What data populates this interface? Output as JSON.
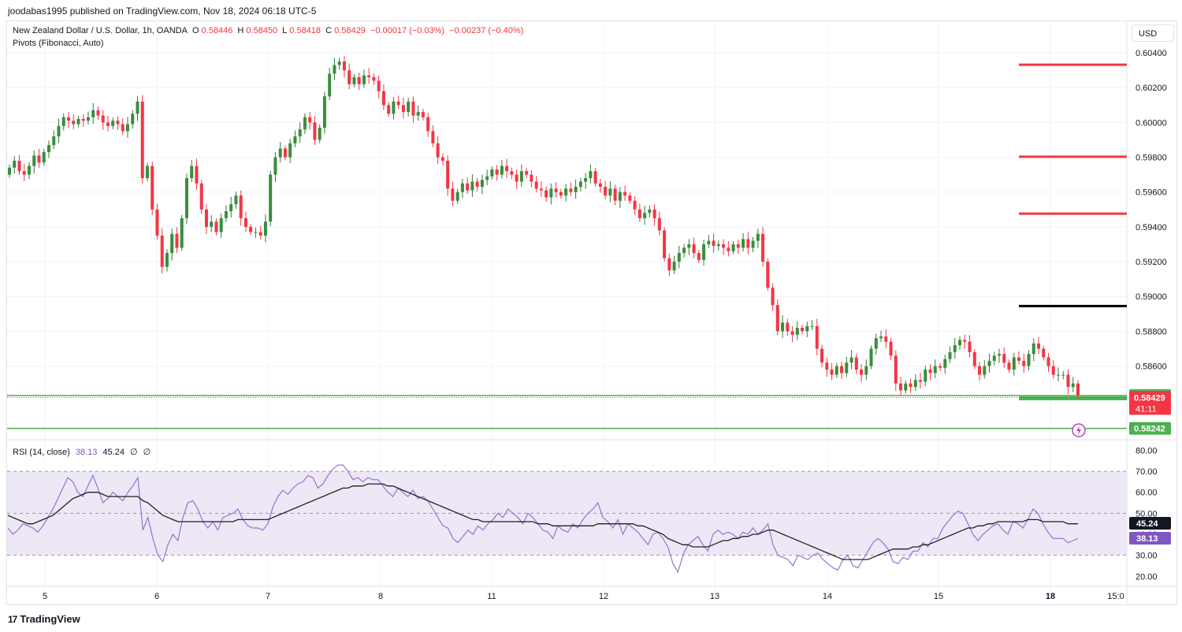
{
  "header": {
    "publisher_line": "joodabas1995 published on TradingView.com, Nov 18, 2024 06:18 UTC-5"
  },
  "legend": {
    "symbol": "New Zealand Dollar / U.S. Dollar, 1h, OANDA",
    "o_label": "O",
    "o_value": "0.58446",
    "h_label": "H",
    "h_value": "0.58450",
    "l_label": "L",
    "l_value": "0.58418",
    "c_label": "C",
    "c_value": "0.58429",
    "change": "−0.00017 (−0.03%)",
    "change2": "−0.00237 (−0.40%)",
    "indicator": "Pivots (Fibonacci, Auto)"
  },
  "currency_button": "USD",
  "rsi_legend": {
    "title": "RSI (14, close)",
    "rsi_value": "38.13",
    "ma_value": "45.24",
    "extra1": "∅",
    "extra2": "∅"
  },
  "footer": {
    "brand": "TradingView"
  },
  "colors": {
    "up": "#089981",
    "up_body": "#2e7d32",
    "down": "#f23645",
    "pivot_red": "#f23645",
    "pivot_black": "#000000",
    "support_green": "#4caf50",
    "rsi_line": "#9575cd",
    "rsi_ma": "#212121",
    "rsi_band": "#ede7f6"
  },
  "chart_data": [
    {
      "type": "candlestick",
      "title": "New Zealand Dollar / U.S. Dollar, 1h, OANDA",
      "x_tick_labels": [
        "5",
        "6",
        "7",
        "8",
        "11",
        "12",
        "13",
        "14",
        "15",
        "18",
        "15:0"
      ],
      "y_tick_labels": [
        "0.60400",
        "0.60200",
        "0.60000",
        "0.59800",
        "0.59600",
        "0.59400",
        "0.59200",
        "0.59000",
        "0.58800",
        "0.58600"
      ],
      "ylim": [
        0.58195,
        0.60475
      ],
      "last_price": "0.58429",
      "last_price_countdown": "41:11",
      "price_labels": [
        {
          "value": "0.58431",
          "color": "#4caf50"
        },
        {
          "value": "0.58242",
          "color": "#4caf50"
        }
      ],
      "pivot_levels": [
        {
          "value": 0.60332,
          "color": "#f23645"
        },
        {
          "value": 0.59803,
          "color": "#f23645"
        },
        {
          "value": 0.59476,
          "color": "#f23645"
        },
        {
          "value": 0.58945,
          "color": "#000000"
        },
        {
          "value": 0.58415,
          "color": "#4caf50"
        }
      ],
      "support_lines": [
        0.58431,
        0.58242
      ],
      "close_path": [
        0.5974,
        0.5978,
        0.5972,
        0.597,
        0.5975,
        0.5981,
        0.5977,
        0.5983,
        0.5987,
        0.5992,
        0.5998,
        0.6003,
        0.6001,
        0.5999,
        0.6002,
        0.6001,
        0.6003,
        0.6007,
        0.6004,
        0.6,
        0.5998,
        0.6001,
        0.5999,
        0.5995,
        0.5999,
        0.6005,
        0.6012,
        0.5968,
        0.5975,
        0.595,
        0.5935,
        0.5917,
        0.5925,
        0.5936,
        0.5928,
        0.5945,
        0.5968,
        0.5975,
        0.5965,
        0.595,
        0.594,
        0.5943,
        0.5937,
        0.5945,
        0.5949,
        0.5953,
        0.5958,
        0.5945,
        0.594,
        0.5937,
        0.5937,
        0.5935,
        0.5943,
        0.597,
        0.598,
        0.5985,
        0.598,
        0.5988,
        0.5992,
        0.5996,
        0.6003,
        0.6,
        0.599,
        0.5997,
        0.6015,
        0.6028,
        0.6033,
        0.6035,
        0.603,
        0.6022,
        0.6026,
        0.6022,
        0.6027,
        0.6026,
        0.6024,
        0.6018,
        0.601,
        0.6005,
        0.6012,
        0.601,
        0.6006,
        0.6012,
        0.6004,
        0.6006,
        0.6003,
        0.5995,
        0.5988,
        0.598,
        0.5978,
        0.5962,
        0.5955,
        0.596,
        0.5965,
        0.5961,
        0.5966,
        0.5963,
        0.5967,
        0.5969,
        0.5973,
        0.597,
        0.5975,
        0.5972,
        0.597,
        0.5966,
        0.5972,
        0.597,
        0.5966,
        0.5962,
        0.5961,
        0.5957,
        0.5962,
        0.596,
        0.5958,
        0.5962,
        0.596,
        0.5963,
        0.5966,
        0.5968,
        0.5972,
        0.5965,
        0.5963,
        0.5958,
        0.5962,
        0.5955,
        0.596,
        0.5958,
        0.5955,
        0.595,
        0.5945,
        0.5948,
        0.595,
        0.5945,
        0.5938,
        0.5922,
        0.5915,
        0.592,
        0.5925,
        0.5928,
        0.593,
        0.5925,
        0.5921,
        0.593,
        0.5932,
        0.5929,
        0.593,
        0.5928,
        0.5926,
        0.593,
        0.5928,
        0.5933,
        0.5928,
        0.5932,
        0.5936,
        0.592,
        0.5905,
        0.5895,
        0.588,
        0.5885,
        0.588,
        0.5878,
        0.5882,
        0.588,
        0.5883,
        0.5883,
        0.587,
        0.5862,
        0.5858,
        0.5855,
        0.586,
        0.5856,
        0.5862,
        0.5865,
        0.5858,
        0.5855,
        0.586,
        0.587,
        0.5876,
        0.5877,
        0.5874,
        0.5866,
        0.585,
        0.5846,
        0.585,
        0.5848,
        0.5852,
        0.5851,
        0.5858,
        0.5856,
        0.586,
        0.5859,
        0.5864,
        0.5868,
        0.5872,
        0.5875,
        0.5874,
        0.5868,
        0.586,
        0.5855,
        0.586,
        0.5863,
        0.5866,
        0.5867,
        0.5862,
        0.5858,
        0.5865,
        0.5863,
        0.586,
        0.5867,
        0.5873,
        0.587,
        0.5865,
        0.586,
        0.5855,
        0.5855,
        0.5855,
        0.5848,
        0.585,
        0.5843
      ]
    },
    {
      "type": "line",
      "title": "RSI (14, close)",
      "y_tick_labels": [
        "80.00",
        "70.00",
        "60.00",
        "50.00",
        "40.00",
        "30.00",
        "20.00"
      ],
      "ylim": [
        15.6,
        84.3
      ],
      "bands": {
        "upper": 70,
        "middle": 50,
        "lower": 30
      },
      "series": [
        {
          "name": "RSI",
          "color": "#9575cd",
          "last": "38.13",
          "values": [
            43,
            40,
            42,
            45,
            44,
            43,
            41,
            44,
            48,
            52,
            57,
            62,
            67,
            65,
            60,
            58,
            63,
            68,
            62,
            55,
            57,
            60,
            58,
            56,
            60,
            63,
            67,
            42,
            48,
            38,
            30,
            27,
            35,
            40,
            37,
            48,
            55,
            56,
            52,
            46,
            43,
            46,
            42,
            48,
            49,
            50,
            52,
            47,
            44,
            43,
            43,
            42,
            45,
            53,
            58,
            61,
            59,
            62,
            64,
            65,
            68,
            67,
            62,
            64,
            68,
            71,
            73,
            73,
            70,
            66,
            67,
            65,
            67,
            66,
            66,
            63,
            60,
            58,
            62,
            60,
            58,
            61,
            57,
            58,
            56,
            52,
            48,
            44,
            43,
            38,
            36,
            39,
            42,
            40,
            44,
            42,
            45,
            47,
            50,
            48,
            52,
            50,
            48,
            45,
            50,
            48,
            45,
            42,
            41,
            38,
            44,
            42,
            41,
            45,
            43,
            47,
            50,
            52,
            55,
            48,
            46,
            43,
            47,
            40,
            45,
            43,
            41,
            38,
            35,
            40,
            41,
            38,
            34,
            26,
            22,
            30,
            35,
            37,
            39,
            35,
            32,
            40,
            42,
            40,
            41,
            40,
            38,
            41,
            40,
            43,
            40,
            42,
            45,
            35,
            30,
            29,
            28,
            25,
            30,
            29,
            28,
            30,
            31,
            28,
            26,
            24,
            23,
            28,
            30,
            25,
            24,
            28,
            32,
            36,
            38,
            36,
            33,
            27,
            26,
            29,
            28,
            32,
            32,
            36,
            34,
            38,
            38,
            43,
            46,
            49,
            51,
            50,
            45,
            40,
            37,
            40,
            42,
            44,
            45,
            42,
            40,
            46,
            45,
            43,
            47,
            52,
            50,
            45,
            41,
            38,
            38,
            38,
            36,
            37,
            38
          ]
        },
        {
          "name": "RSI-based MA",
          "color": "#212121",
          "last": "45.24",
          "values": [
            49,
            48,
            47,
            46,
            45,
            45,
            46,
            47,
            48,
            49,
            51,
            53,
            55,
            57,
            58,
            59,
            60,
            60,
            60,
            59,
            58,
            58,
            58,
            58,
            58,
            58,
            58,
            56,
            55,
            53,
            51,
            49,
            48,
            47,
            46,
            46,
            46,
            46,
            46,
            46,
            46,
            46,
            46,
            46,
            46,
            46,
            47,
            47,
            47,
            47,
            47,
            47,
            47,
            48,
            49,
            50,
            51,
            52,
            53,
            54,
            55,
            56,
            57,
            58,
            59,
            60,
            61,
            62,
            62,
            63,
            63,
            63,
            64,
            64,
            64,
            64,
            63,
            63,
            62,
            61,
            60,
            59,
            58,
            57,
            56,
            55,
            54,
            53,
            52,
            51,
            50,
            49,
            48,
            47,
            47,
            46,
            46,
            46,
            46,
            46,
            46,
            46,
            46,
            46,
            46,
            46,
            45,
            45,
            45,
            44,
            44,
            44,
            44,
            44,
            44,
            44,
            44,
            44,
            45,
            45,
            45,
            45,
            45,
            45,
            45,
            45,
            44,
            44,
            43,
            42,
            41,
            40,
            38,
            37,
            36,
            35,
            35,
            34,
            34,
            34,
            34,
            35,
            36,
            37,
            37,
            38,
            38,
            39,
            39,
            40,
            40,
            41,
            42,
            42,
            41,
            40,
            39,
            38,
            37,
            36,
            35,
            34,
            33,
            32,
            31,
            30,
            29,
            28,
            28,
            28,
            28,
            28,
            28,
            29,
            30,
            31,
            32,
            33,
            33,
            33,
            33,
            34,
            34,
            35,
            35,
            36,
            37,
            38,
            39,
            40,
            41,
            42,
            43,
            43,
            44,
            44,
            45,
            45,
            46,
            46,
            46,
            46,
            46,
            46,
            47,
            47,
            47,
            46,
            46,
            46,
            46,
            46,
            45,
            45,
            45
          ]
        }
      ]
    }
  ]
}
